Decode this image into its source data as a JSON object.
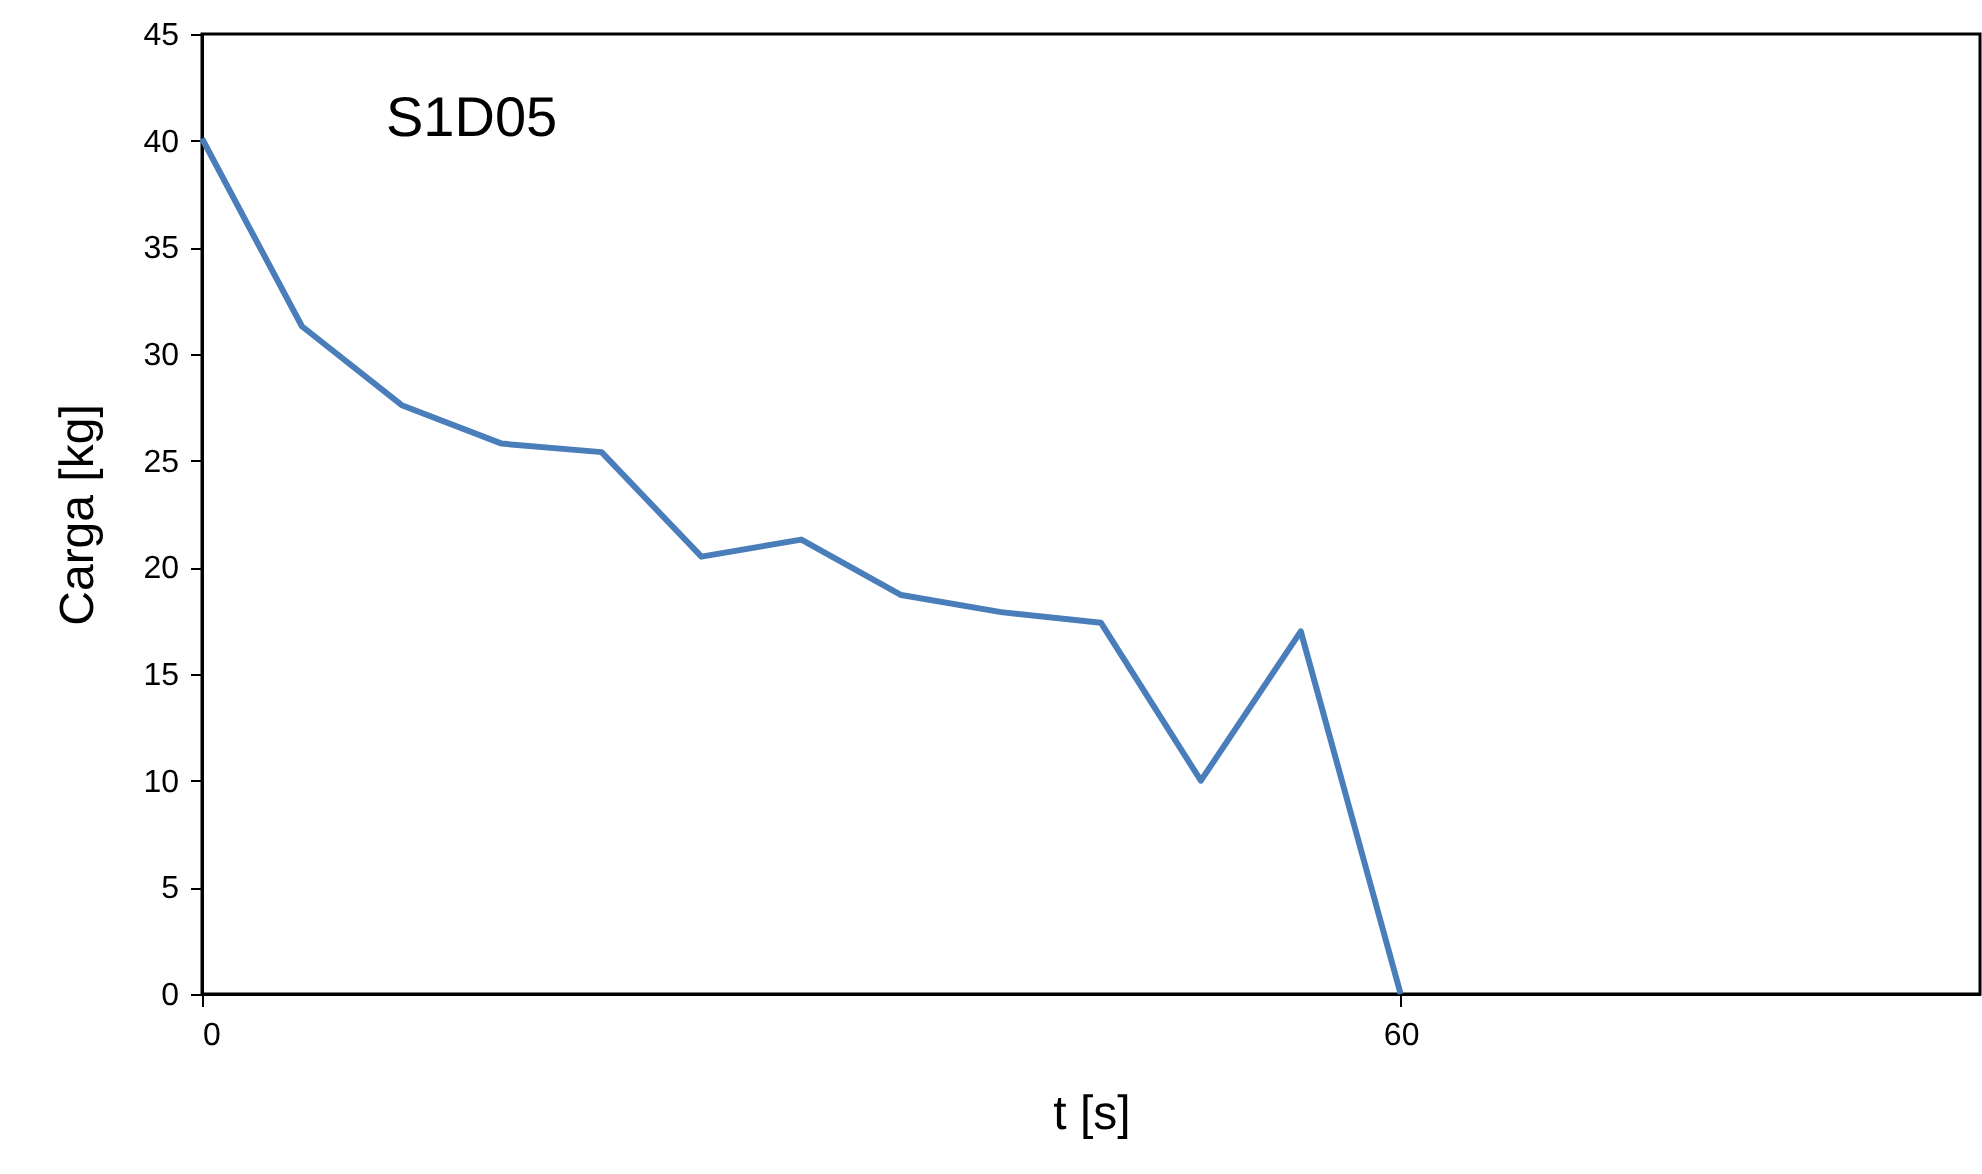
{
  "chart_data": {
    "type": "line",
    "title": "S1D05",
    "xlabel": "t [s]",
    "ylabel": "Carga [kg]",
    "x": [
      0,
      5,
      10,
      15,
      20,
      25,
      30,
      35,
      40,
      45,
      50,
      55,
      60
    ],
    "series": [
      {
        "color": "#4a7ebb",
        "values": [
          40.1,
          31.3,
          27.6,
          25.8,
          25.4,
          20.5,
          21.3,
          18.7,
          17.9,
          17.4,
          10.0,
          17.0,
          0
        ]
      }
    ],
    "xlim": [
      0,
      89
    ],
    "xticks": [
      0,
      60
    ],
    "ylim": [
      0,
      45
    ],
    "yticks": [
      0,
      5,
      10,
      15,
      20,
      25,
      30,
      35,
      40,
      45
    ],
    "grid": false,
    "marker": "none",
    "line_style": "solid"
  }
}
